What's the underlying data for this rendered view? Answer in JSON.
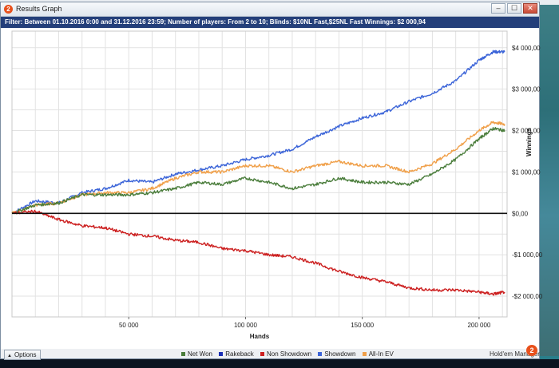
{
  "window": {
    "title": "Results Graph",
    "logo_glyph": "2",
    "buttons": {
      "minimize": "–",
      "maximize": "☐",
      "close": "✕"
    }
  },
  "filter": {
    "text": "Filter: Between 01.10.2016 0:00 and 31.12.2016 23:59; Number of players: From 2 to 10; Blinds: $10NL Fast,$25NL Fast  Winnings: $2 000,94"
  },
  "bottom": {
    "options_label": "Options",
    "brand": "Hold'em Manager",
    "brand_logo": "2"
  },
  "colors": {
    "net_won": "#4a7d3b",
    "rakeback": "#1a2fb5",
    "non_showdown": "#cc1f1f",
    "showdown": "#3b64d8",
    "all_in_ev": "#f0a04a",
    "filter_bar": "#243f7a"
  },
  "chart_data": {
    "type": "line",
    "xlabel": "Hands",
    "ylabel": "Winnings",
    "xlim": [
      0,
      212000
    ],
    "ylim": [
      -2500,
      4400
    ],
    "x_ticks": [
      50000,
      100000,
      150000,
      200000
    ],
    "x_tick_labels": [
      "50 000",
      "100 000",
      "150 000",
      "200 000"
    ],
    "y_ticks": [
      4000,
      3000,
      2000,
      1000,
      0,
      -1000,
      -2000
    ],
    "y_tick_labels": [
      "$4 000,00",
      "$3 000,00",
      "$2 000,00",
      "$1 000,00",
      "$0,00",
      "-$1 000,00",
      "-$2 000,00"
    ],
    "grid": true,
    "legend_position": "bottom",
    "legend": [
      "Net Won",
      "Rakeback",
      "Non Showdown",
      "Showdown",
      "All-In EV"
    ],
    "series": [
      {
        "name": "Showdown",
        "x": [
          0,
          10000,
          20000,
          30000,
          40000,
          50000,
          60000,
          70000,
          80000,
          90000,
          100000,
          110000,
          120000,
          130000,
          140000,
          150000,
          160000,
          170000,
          180000,
          190000,
          200000,
          206000,
          211000
        ],
        "y": [
          0,
          300,
          250,
          500,
          600,
          800,
          750,
          950,
          1050,
          1150,
          1300,
          1400,
          1550,
          1850,
          2100,
          2300,
          2450,
          2700,
          2900,
          3200,
          3700,
          3900,
          3900
        ]
      },
      {
        "name": "All-In EV",
        "x": [
          0,
          10000,
          20000,
          30000,
          40000,
          50000,
          60000,
          70000,
          80000,
          90000,
          100000,
          110000,
          120000,
          130000,
          140000,
          150000,
          160000,
          170000,
          180000,
          190000,
          200000,
          206000,
          211000
        ],
        "y": [
          0,
          200,
          250,
          450,
          500,
          500,
          600,
          850,
          1000,
          1000,
          1150,
          1150,
          1000,
          1150,
          1250,
          1150,
          1150,
          1000,
          1200,
          1550,
          2000,
          2200,
          2150
        ]
      },
      {
        "name": "Net Won",
        "x": [
          0,
          10000,
          20000,
          30000,
          40000,
          50000,
          60000,
          70000,
          80000,
          90000,
          100000,
          110000,
          120000,
          130000,
          140000,
          150000,
          160000,
          170000,
          180000,
          190000,
          200000,
          206000,
          211000
        ],
        "y": [
          0,
          200,
          250,
          450,
          450,
          450,
          500,
          600,
          750,
          700,
          850,
          750,
          600,
          700,
          850,
          750,
          750,
          700,
          950,
          1300,
          1800,
          2050,
          2000
        ]
      },
      {
        "name": "Non Showdown",
        "x": [
          0,
          10000,
          20000,
          30000,
          40000,
          50000,
          60000,
          70000,
          80000,
          90000,
          100000,
          110000,
          120000,
          130000,
          140000,
          150000,
          160000,
          170000,
          180000,
          190000,
          200000,
          206000,
          211000
        ],
        "y": [
          0,
          50,
          -150,
          -300,
          -350,
          -500,
          -550,
          -650,
          -700,
          -850,
          -900,
          -1000,
          -1050,
          -1200,
          -1400,
          -1550,
          -1650,
          -1800,
          -1850,
          -1850,
          -1900,
          -1950,
          -1900
        ]
      }
    ]
  }
}
